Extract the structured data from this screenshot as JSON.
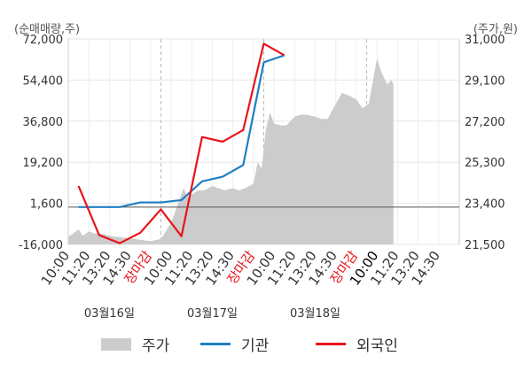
{
  "units": {
    "left": "(순매매량,주)",
    "right": "(주가,원)"
  },
  "legend": [
    {
      "label": "주가",
      "color": "#cccccc"
    },
    {
      "label": "기관",
      "color": "#1f7fc6"
    },
    {
      "label": "외국인",
      "color": "#e8141b"
    }
  ],
  "chart_data": {
    "type": "line",
    "x_tick_labels": [
      "10:00",
      "11:20",
      "13:20",
      "14:30",
      "장마감",
      "10:00",
      "11:20",
      "13:20",
      "14:30",
      "장마감",
      "10:00",
      "11:20",
      "13:20",
      "14:30",
      "장마감",
      "10:00",
      "11:20",
      "13:20",
      "14:30"
    ],
    "x_tick_colors": [
      "#333333",
      "#333333",
      "#333333",
      "#333333",
      "#e8141b",
      "#333333",
      "#333333",
      "#333333",
      "#333333",
      "#e8141b",
      "#333333",
      "#333333",
      "#333333",
      "#333333",
      "#e8141b",
      "#000000",
      "#333333",
      "#333333",
      "#333333"
    ],
    "dates": [
      "03월16일",
      "03월17일",
      "03월18일"
    ],
    "y_left": {
      "ticks": [
        "72,000",
        "54,400",
        "36,800",
        "19,200",
        "1,600",
        "-16,000"
      ],
      "min": -16000,
      "max": 72000
    },
    "y_right": {
      "ticks": [
        "31,000",
        "29,100",
        "27,200",
        "25,300",
        "23,400",
        "21,500"
      ],
      "min": 21500,
      "max": 31000
    },
    "grid": true,
    "zero_line": 0,
    "series": [
      {
        "name": "기관",
        "axis": "left",
        "color": "#1f7fc6",
        "points": [
          [
            0.5,
            0
          ],
          [
            1.5,
            0
          ],
          [
            2.5,
            0
          ],
          [
            3.5,
            2000
          ],
          [
            4.5,
            2000
          ],
          [
            5.5,
            3000
          ],
          [
            6.5,
            11000
          ],
          [
            7.5,
            13000
          ],
          [
            8.5,
            18000
          ],
          [
            9.5,
            62000
          ],
          [
            10.5,
            65000
          ]
        ]
      },
      {
        "name": "외국인",
        "axis": "left",
        "color": "#e8141b",
        "points": [
          [
            0.5,
            9000
          ],
          [
            1.5,
            -12000
          ],
          [
            2.5,
            -15500
          ],
          [
            3.5,
            -11000
          ],
          [
            4.5,
            -1000
          ],
          [
            5.5,
            -12500
          ],
          [
            6.5,
            30000
          ],
          [
            7.5,
            28000
          ],
          [
            8.5,
            33000
          ],
          [
            9.5,
            70000
          ],
          [
            10.5,
            65000
          ]
        ]
      },
      {
        "name": "주가",
        "axis": "right",
        "color": "#cccccc",
        "points": [
          [
            0,
            21850
          ],
          [
            0.3,
            22050
          ],
          [
            0.5,
            22200
          ],
          [
            0.7,
            21900
          ],
          [
            1.0,
            22100
          ],
          [
            1.3,
            22000
          ],
          [
            1.6,
            22000
          ],
          [
            2.0,
            21900
          ],
          [
            2.4,
            21850
          ],
          [
            2.8,
            21800
          ],
          [
            3.2,
            21750
          ],
          [
            3.6,
            21700
          ],
          [
            4.0,
            21650
          ],
          [
            4.5,
            21750
          ],
          [
            5.0,
            22500
          ],
          [
            5.3,
            23300
          ],
          [
            5.6,
            24100
          ],
          [
            5.8,
            23700
          ],
          [
            6.0,
            23800
          ],
          [
            6.3,
            24000
          ],
          [
            6.6,
            24000
          ],
          [
            7.0,
            24200
          ],
          [
            7.3,
            24100
          ],
          [
            7.6,
            24000
          ],
          [
            8.0,
            24100
          ],
          [
            8.3,
            24000
          ],
          [
            8.6,
            24100
          ],
          [
            9.0,
            24300
          ],
          [
            9.2,
            25300
          ],
          [
            9.4,
            25000
          ],
          [
            9.6,
            26800
          ],
          [
            9.8,
            27600
          ],
          [
            10.0,
            27100
          ],
          [
            10.3,
            27000
          ],
          [
            10.6,
            27000
          ],
          [
            11.0,
            27400
          ],
          [
            11.3,
            27500
          ],
          [
            11.6,
            27500
          ],
          [
            12.0,
            27400
          ],
          [
            12.3,
            27300
          ],
          [
            12.6,
            27300
          ],
          [
            13.0,
            28000
          ],
          [
            13.3,
            28500
          ],
          [
            13.6,
            28400
          ],
          [
            14.0,
            28200
          ],
          [
            14.3,
            27800
          ],
          [
            14.6,
            28000
          ],
          [
            15.0,
            30100
          ],
          [
            15.2,
            29500
          ],
          [
            15.5,
            28900
          ],
          [
            15.7,
            29100
          ],
          [
            15.8,
            28900
          ]
        ]
      }
    ]
  }
}
